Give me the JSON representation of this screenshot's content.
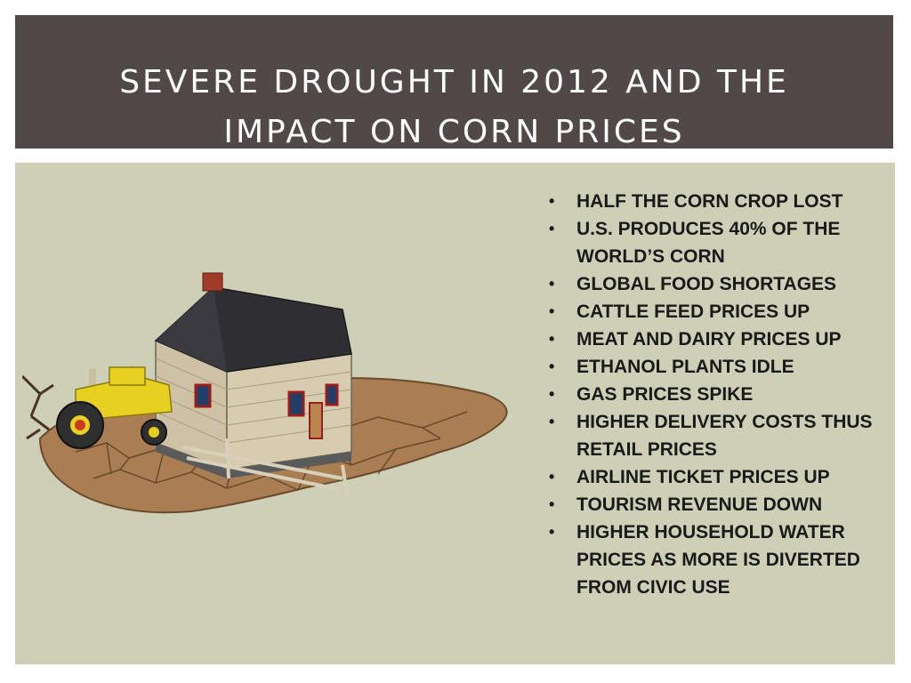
{
  "slide": {
    "title_line1": "SEVERE DROUGHT IN 2012 AND THE",
    "title_line2": "IMPACT ON CORN PRICES"
  },
  "bullets": [
    "HALF THE CORN CROP LOST",
    "U.S. PRODUCES 40% OF THE WORLD’S CORN",
    "GLOBAL FOOD SHORTAGES",
    "CATTLE FEED PRICES UP",
    "MEAT AND DAIRY PRICES UP",
    "ETHANOL PLANTS IDLE",
    "GAS PRICES SPIKE",
    "HIGHER DELIVERY COSTS THUS RETAIL PRICES",
    "AIRLINE TICKET PRICES UP",
    "TOURISM REVENUE DOWN",
    "HIGHER HOUSEHOLD WATER PRICES AS MORE IS DIVERTED FROM CIVIC USE"
  ],
  "colors": {
    "title_bar": "#514848",
    "content_bg": "#cdd0b6",
    "cracked_earth": "#a97e52",
    "tractor": "#e8d020",
    "house_siding": "#d8ccb0",
    "roof": "#2e2e33"
  }
}
